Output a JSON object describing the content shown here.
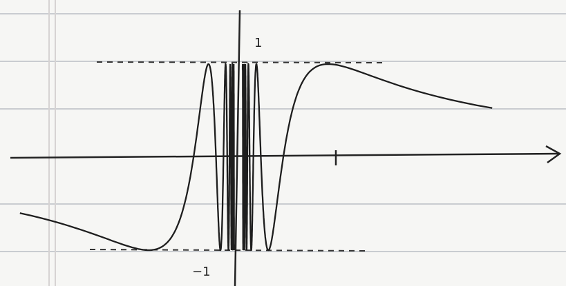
{
  "labels": {
    "y_top": "1",
    "y_bottom": "−1"
  }
}
